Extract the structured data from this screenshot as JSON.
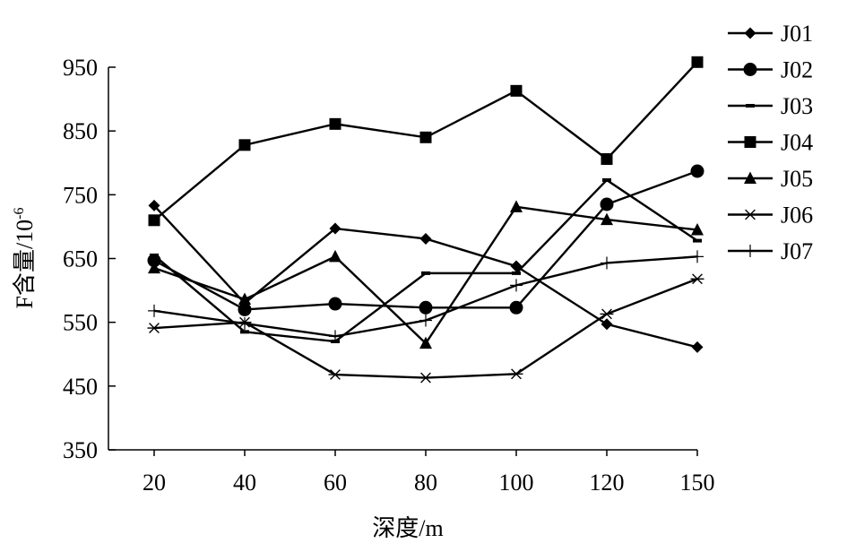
{
  "chart_data": {
    "type": "line",
    "title": "",
    "xlabel": "深度/m",
    "ylabel_prefix": "F含量/10",
    "ylabel_exponent": "-6",
    "categories": [
      "20",
      "40",
      "60",
      "80",
      "100",
      "120",
      "150"
    ],
    "ylim": [
      350,
      950
    ],
    "yticks": [
      "350",
      "450",
      "550",
      "650",
      "750",
      "850",
      "950"
    ],
    "grid": false,
    "legend_position": "right",
    "series": [
      {
        "name": "J01",
        "marker": "diamond",
        "values": [
          733,
          580,
          697,
          681,
          638,
          547,
          511
        ]
      },
      {
        "name": "J02",
        "marker": "circle",
        "values": [
          647,
          570,
          579,
          573,
          573,
          735,
          787
        ]
      },
      {
        "name": "J03",
        "marker": "dash",
        "values": [
          655,
          535,
          520,
          627,
          627,
          773,
          678
        ]
      },
      {
        "name": "J04",
        "marker": "square",
        "values": [
          710,
          828,
          861,
          840,
          913,
          806,
          958
        ]
      },
      {
        "name": "J05",
        "marker": "triangle",
        "values": [
          635,
          586,
          653,
          517,
          731,
          711,
          695
        ]
      },
      {
        "name": "J06",
        "marker": "asterisk",
        "values": [
          541,
          550,
          468,
          463,
          469,
          563,
          618
        ]
      },
      {
        "name": "J07",
        "marker": "plus",
        "values": [
          568,
          548,
          528,
          553,
          608,
          643,
          653
        ]
      }
    ]
  }
}
